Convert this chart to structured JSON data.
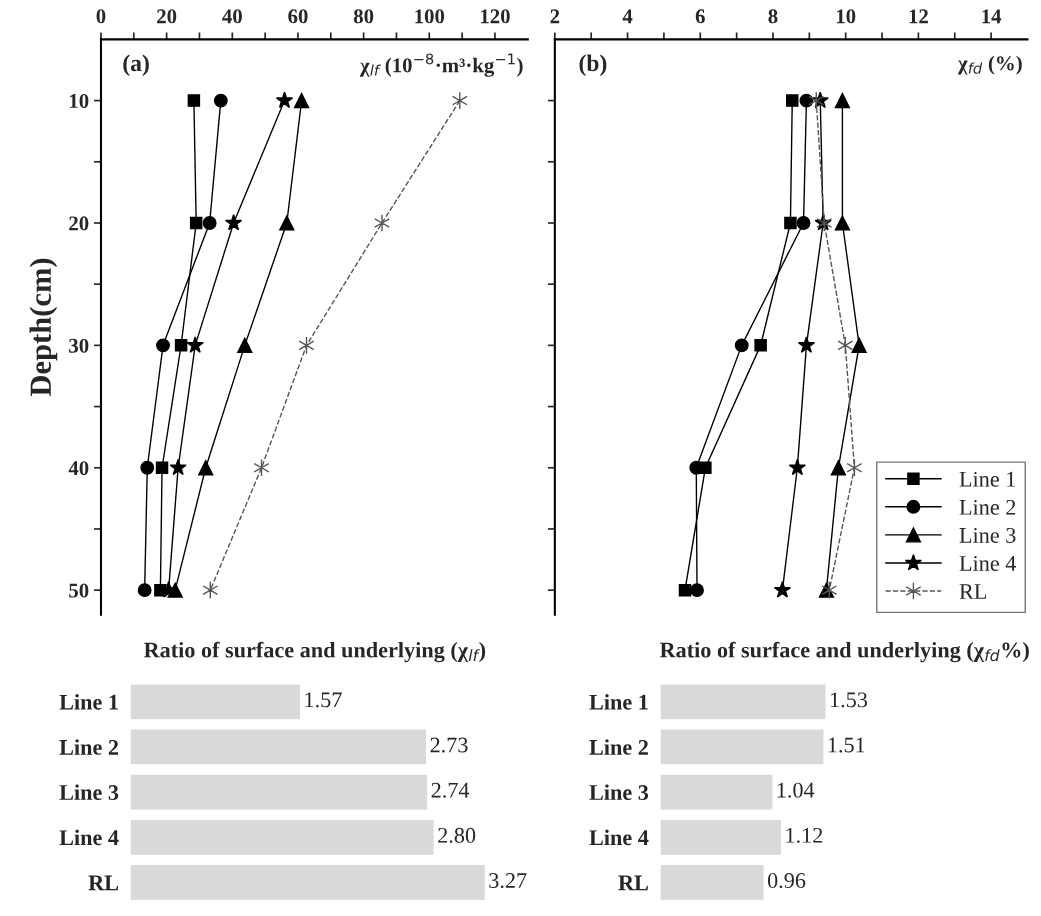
{
  "chart_data": [
    {
      "type": "line",
      "orientation": "horizontal",
      "xlabel": "χ$_{lf}$ (10$^{−8}$·m³·kg$^{−1}$)",
      "ylabel": "Depth(cm)",
      "annotations": [
        "(a)"
      ],
      "x": [
        10,
        20,
        30,
        40,
        50
      ],
      "xlim": [
        0,
        130
      ],
      "xticks": [
        0,
        {
          "value": 10,
          "label": null
        },
        20,
        {
          "value": 30,
          "label": null
        },
        40,
        {
          "value": 50,
          "label": null
        },
        60,
        {
          "value": 70,
          "label": null
        },
        80,
        {
          "value": 90,
          "label": null
        },
        100,
        {
          "value": 110,
          "label": null
        },
        120
      ],
      "ylim": [
        52,
        5
      ],
      "yticks": [
        10,
        {
          "value": 15,
          "label": null
        },
        20,
        {
          "value": 25,
          "label": null
        },
        30,
        {
          "value": 35,
          "label": null
        },
        40,
        {
          "value": 45,
          "label": null
        },
        50
      ],
      "series": [
        {
          "color": "#000000",
          "marker": "square",
          "line_style": "solid",
          "values": [
            28.3,
            29.0,
            24.4,
            18.6,
            18.1
          ]
        },
        {
          "color": "#000000",
          "marker": "circle",
          "line_style": "solid",
          "values": [
            36.5,
            33.1,
            18.9,
            14.1,
            13.3
          ]
        },
        {
          "color": "#000000",
          "marker": "triangle",
          "line_style": "solid",
          "values": [
            61.1,
            56.6,
            43.8,
            31.9,
            22.6
          ]
        },
        {
          "color": "#000000",
          "marker": "star",
          "line_style": "solid",
          "values": [
            55.9,
            40.4,
            28.7,
            23.5,
            20.6
          ]
        },
        {
          "color": "#555555",
          "marker": "cross",
          "line_style": "dashed",
          "values": [
            109.3,
            85.6,
            62.6,
            48.9,
            33.3
          ]
        }
      ]
    },
    {
      "type": "line",
      "orientation": "horizontal",
      "xlabel": "χ$_{fd}$ (%)",
      "annotations": [
        "(b)"
      ],
      "x": [
        10,
        20,
        30,
        40,
        50
      ],
      "tick_labels": "x",
      "xlim": [
        2,
        15
      ],
      "xticks": [
        2,
        {
          "value": 3,
          "label": null
        },
        4,
        {
          "value": 5,
          "label": null
        },
        6,
        {
          "value": 7,
          "label": null
        },
        8,
        {
          "value": 9,
          "label": null
        },
        10,
        {
          "value": 11,
          "label": null
        },
        12,
        {
          "value": 13,
          "label": null
        },
        14
      ],
      "ylim": [
        52,
        5
      ],
      "yticks": [
        10,
        {
          "value": 15,
          "label": null
        },
        20,
        {
          "value": 25,
          "label": null
        },
        30,
        {
          "value": 35,
          "label": null
        },
        40,
        {
          "value": 45,
          "label": null
        },
        50
      ],
      "series": [
        {
          "name": "Line 1",
          "color": "#000000",
          "marker": "square",
          "line_style": "solid",
          "values": [
            8.53,
            8.48,
            7.66,
            6.14,
            5.58
          ]
        },
        {
          "name": "Line 2",
          "color": "#000000",
          "marker": "circle",
          "line_style": "solid",
          "values": [
            8.92,
            8.84,
            7.14,
            5.89,
            5.91
          ]
        },
        {
          "name": "Line 3",
          "color": "#000000",
          "marker": "triangle",
          "line_style": "solid",
          "values": [
            9.91,
            9.91,
            10.37,
            9.8,
            9.47
          ]
        },
        {
          "name": "Line 4",
          "color": "#000000",
          "marker": "star",
          "line_style": "solid",
          "values": [
            9.3,
            9.38,
            8.92,
            8.67,
            8.26
          ]
        },
        {
          "name": "RL",
          "color": "#555555",
          "marker": "cross",
          "line_style": "dashed",
          "values": [
            9.19,
            9.41,
            9.99,
            10.24,
            9.55
          ]
        }
      ],
      "legend": "bottom right"
    },
    {
      "type": "bar",
      "orientation": "horizontal",
      "title": "Ratio of surface and underlying (χ$_{lf}$)",
      "categories": [
        "Line 1",
        "Line 2",
        "Line 3",
        "Line 4",
        "RL"
      ],
      "values": [
        1.57,
        2.73,
        2.74,
        2.8,
        3.27
      ],
      "value_labels": [
        "1.57",
        "2.73",
        "2.74",
        "2.80",
        "3.27"
      ],
      "color": "#d9d9d9"
    },
    {
      "type": "bar",
      "orientation": "horizontal",
      "title": "Ratio of surface and underlying (χ$_{fd}$%)",
      "categories": [
        "Line 1",
        "Line 2",
        "Line 3",
        "Line 4",
        "RL"
      ],
      "values": [
        1.53,
        1.51,
        1.04,
        1.12,
        0.96
      ],
      "value_labels": [
        "1.53",
        "1.51",
        "1.04",
        "1.12",
        "0.96"
      ],
      "color": "#d9d9d9"
    }
  ]
}
